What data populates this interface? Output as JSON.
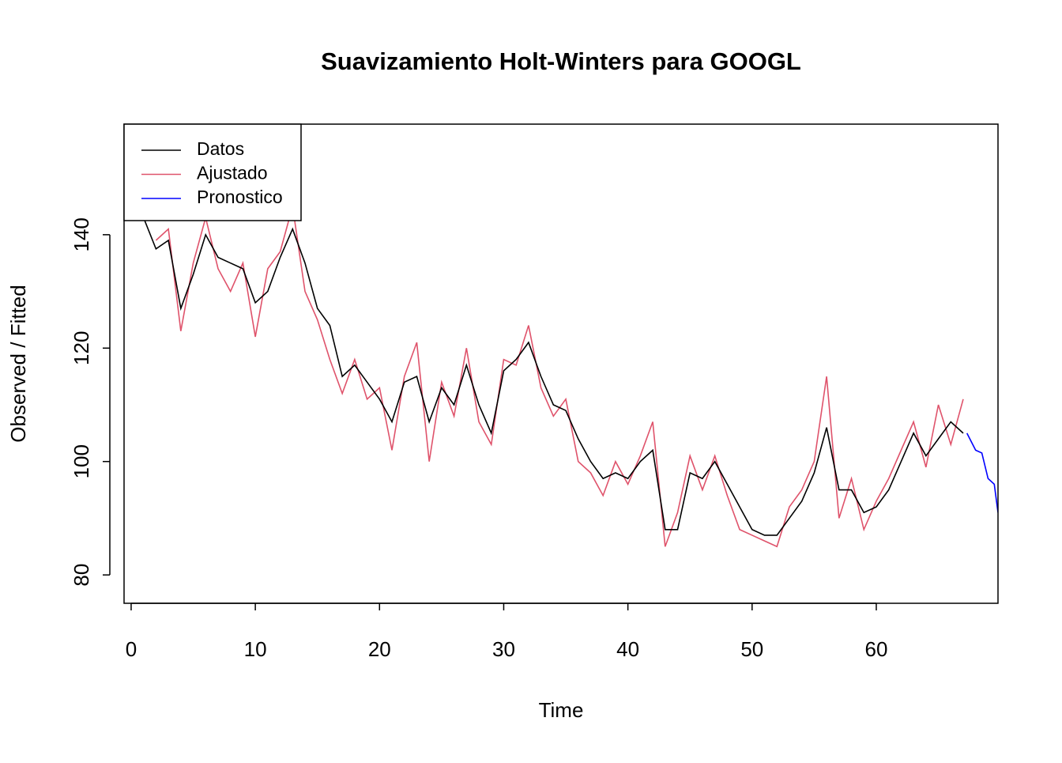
{
  "chart_data": {
    "type": "line",
    "title": "Suavizamiento Holt-Winters para GOOGL",
    "x_label": "Time",
    "y_label": "Observed / Fitted",
    "x": [
      1,
      2,
      3,
      4,
      5,
      6,
      7,
      8,
      9,
      10,
      11,
      12,
      13,
      14,
      15,
      16,
      17,
      18,
      19,
      20,
      21,
      22,
      23,
      24,
      25,
      26,
      27,
      28,
      29,
      30,
      31,
      32,
      33,
      34,
      35,
      36,
      37,
      38,
      39,
      40,
      41,
      42,
      43,
      44,
      45,
      46,
      47,
      48,
      49,
      50,
      51,
      52,
      53,
      54,
      55,
      56,
      57,
      58,
      59,
      60,
      61,
      62,
      63,
      64,
      65,
      66,
      67
    ],
    "series": [
      {
        "name": "Datos",
        "color": "#000000",
        "values": [
          143,
          137.5,
          139,
          127,
          133,
          140,
          136,
          135,
          134,
          128,
          130,
          136,
          141,
          135,
          127,
          124,
          115,
          117,
          114,
          111,
          107,
          114,
          115,
          107,
          113,
          110,
          117,
          110,
          105,
          116,
          118,
          121,
          115,
          110,
          109,
          104,
          100,
          97,
          98,
          97,
          100,
          102,
          88,
          88,
          98,
          97,
          100,
          96,
          92,
          88,
          87,
          87,
          90,
          93,
          98,
          106,
          95,
          95,
          91,
          92,
          95,
          100,
          105,
          101,
          104,
          107,
          105
        ]
      },
      {
        "name": "Ajustado",
        "color": "#df536b",
        "values": [
          null,
          139,
          141,
          123,
          135,
          143,
          134,
          130,
          135,
          122,
          134,
          137,
          145,
          130,
          125,
          118,
          112,
          118,
          111,
          113,
          102,
          115,
          121,
          100,
          114,
          108,
          120,
          107,
          103,
          118,
          117,
          124,
          113,
          108,
          111,
          100,
          98,
          94,
          100,
          96,
          101,
          107,
          85,
          91,
          101,
          95,
          101,
          94,
          88,
          87,
          86,
          85,
          92,
          95,
          100,
          115,
          90,
          97,
          88,
          93,
          97,
          102,
          107,
          99,
          110,
          103,
          111
        ]
      },
      {
        "name": "Pronostico",
        "color": "#0000ff",
        "x": [
          67.3,
          68,
          68.5,
          69,
          69.5,
          69.8
        ],
        "values": [
          105,
          102,
          101.5,
          97,
          96,
          91
        ]
      }
    ],
    "xlim": [
      -0.57,
      69.8
    ],
    "ylim": [
      75,
      159.5
    ],
    "xticks": [
      0,
      10,
      20,
      30,
      40,
      50,
      60
    ],
    "yticks": [
      80,
      100,
      120,
      140
    ],
    "legend": "top-left"
  }
}
